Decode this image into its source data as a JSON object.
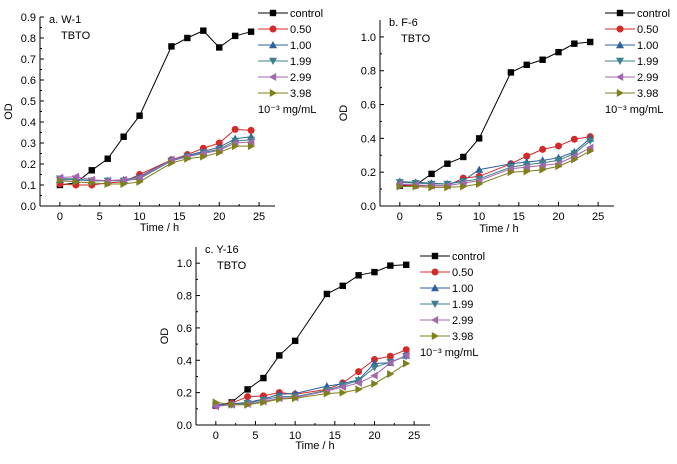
{
  "chart_data": [
    {
      "type": "line",
      "panel_label": "a. W-1",
      "annotation": "TBTO",
      "xlabel": "Time / h",
      "ylabel": "OD",
      "xlim": [
        -2.5,
        27
      ],
      "ylim": [
        0,
        0.9
      ],
      "xticks": [
        0,
        5,
        10,
        15,
        20,
        25
      ],
      "xtick_labels": [
        "0",
        "5",
        "10",
        "15",
        "20",
        "25"
      ],
      "yticks": [
        0,
        0.1,
        0.2,
        0.3,
        0.4,
        0.5,
        0.6,
        0.7,
        0.8,
        0.9
      ],
      "ytick_labels": [
        "0.0",
        "0.1",
        "0.2",
        "0.3",
        "0.4",
        "0.5",
        "0.6",
        "0.7",
        "0.8",
        "0.9"
      ],
      "legend_position": "top-right",
      "legend_unit": "10⁻³ mg/mL",
      "grid": false,
      "x": [
        0,
        2,
        4,
        6,
        8,
        10,
        14,
        16,
        18,
        20,
        22,
        24
      ],
      "series": [
        {
          "name": "control",
          "marker": "square",
          "color": "#000000",
          "values": [
            0.1,
            0.11,
            0.17,
            0.225,
            0.33,
            0.43,
            0.76,
            0.8,
            0.835,
            0.755,
            0.81,
            0.83
          ]
        },
        {
          "name": "0.50",
          "marker": "circle",
          "color": "#d42a2a",
          "values": [
            0.105,
            0.1,
            0.1,
            0.11,
            0.115,
            0.15,
            0.22,
            0.245,
            0.275,
            0.3,
            0.365,
            0.36
          ]
        },
        {
          "name": "1.00",
          "marker": "triangle-up",
          "color": "#2e5f9e",
          "values": [
            0.125,
            0.125,
            0.12,
            0.12,
            0.125,
            0.14,
            0.22,
            0.24,
            0.26,
            0.28,
            0.32,
            0.33
          ]
        },
        {
          "name": "1.99",
          "marker": "triangle-down",
          "color": "#3d7f8c",
          "values": [
            0.13,
            0.13,
            0.12,
            0.12,
            0.12,
            0.13,
            0.215,
            0.235,
            0.255,
            0.27,
            0.31,
            0.315
          ]
        },
        {
          "name": "2.99",
          "marker": "triangle-left",
          "color": "#a366b0",
          "values": [
            0.135,
            0.14,
            0.125,
            0.12,
            0.125,
            0.135,
            0.22,
            0.235,
            0.25,
            0.265,
            0.3,
            0.305
          ]
        },
        {
          "name": "3.98",
          "marker": "triangle-right",
          "color": "#7f7f1e",
          "values": [
            0.12,
            0.115,
            0.11,
            0.105,
            0.105,
            0.115,
            0.205,
            0.225,
            0.235,
            0.255,
            0.285,
            0.285
          ]
        }
      ]
    },
    {
      "type": "line",
      "panel_label": "b. F-6",
      "annotation": "TBTO",
      "xlabel": "Time / h",
      "ylabel": "OD",
      "xlim": [
        -2.5,
        27
      ],
      "ylim": [
        0,
        1.1
      ],
      "xticks": [
        0,
        5,
        10,
        15,
        20,
        25
      ],
      "xtick_labels": [
        "0",
        "5",
        "10",
        "15",
        "20",
        "25"
      ],
      "yticks": [
        0,
        0.2,
        0.4,
        0.6,
        0.8,
        1.0
      ],
      "ytick_labels": [
        "0.0",
        "0.2",
        "0.4",
        "0.6",
        "0.8",
        "1.0"
      ],
      "legend_position": "top-right",
      "legend_unit": "10⁻³ mg/mL",
      "grid": false,
      "x": [
        0,
        2,
        4,
        6,
        8,
        10,
        14,
        16,
        18,
        20,
        22,
        24
      ],
      "series": [
        {
          "name": "control",
          "marker": "square",
          "color": "#000000",
          "values": [
            0.12,
            0.125,
            0.19,
            0.25,
            0.29,
            0.4,
            0.79,
            0.835,
            0.865,
            0.91,
            0.96,
            0.97
          ]
        },
        {
          "name": "0.50",
          "marker": "circle",
          "color": "#d42a2a",
          "values": [
            0.125,
            0.12,
            0.12,
            0.12,
            0.165,
            0.175,
            0.25,
            0.295,
            0.335,
            0.355,
            0.395,
            0.41
          ]
        },
        {
          "name": "1.00",
          "marker": "triangle-up",
          "color": "#2e5f9e",
          "values": [
            0.145,
            0.14,
            0.135,
            0.13,
            0.15,
            0.215,
            0.25,
            0.26,
            0.27,
            0.285,
            0.32,
            0.4
          ]
        },
        {
          "name": "1.99",
          "marker": "triangle-down",
          "color": "#3d7f8c",
          "values": [
            0.14,
            0.135,
            0.13,
            0.13,
            0.145,
            0.16,
            0.23,
            0.245,
            0.255,
            0.27,
            0.31,
            0.385
          ]
        },
        {
          "name": "2.99",
          "marker": "triangle-left",
          "color": "#a366b0",
          "values": [
            0.13,
            0.125,
            0.12,
            0.12,
            0.135,
            0.15,
            0.22,
            0.23,
            0.24,
            0.25,
            0.295,
            0.345
          ]
        },
        {
          "name": "3.98",
          "marker": "triangle-right",
          "color": "#7f7f1e",
          "values": [
            0.115,
            0.115,
            0.11,
            0.11,
            0.115,
            0.13,
            0.2,
            0.205,
            0.215,
            0.235,
            0.275,
            0.325
          ]
        }
      ]
    },
    {
      "type": "line",
      "panel_label": "c. Y-16",
      "annotation": "TBTO",
      "xlabel": "Time / h",
      "ylabel": "OD",
      "xlim": [
        -2.5,
        27
      ],
      "ylim": [
        0,
        1.1
      ],
      "xticks": [
        0,
        5,
        10,
        15,
        20,
        25
      ],
      "xtick_labels": [
        "0",
        "5",
        "10",
        "15",
        "20",
        "25"
      ],
      "yticks": [
        0,
        0.2,
        0.4,
        0.6,
        0.8,
        1.0
      ],
      "ytick_labels": [
        "0.0",
        "0.2",
        "0.4",
        "0.6",
        "0.8",
        "1.0"
      ],
      "legend_position": "top-right",
      "legend_unit": "10⁻³ mg/mL",
      "grid": false,
      "x": [
        0,
        2,
        4,
        6,
        8,
        10,
        14,
        16,
        18,
        20,
        22,
        24
      ],
      "series": [
        {
          "name": "control",
          "marker": "square",
          "color": "#000000",
          "values": [
            0.12,
            0.14,
            0.22,
            0.29,
            0.43,
            0.52,
            0.81,
            0.86,
            0.925,
            0.945,
            0.985,
            0.99
          ]
        },
        {
          "name": "0.50",
          "marker": "circle",
          "color": "#d42a2a",
          "values": [
            0.12,
            0.135,
            0.175,
            0.18,
            0.2,
            0.19,
            0.22,
            0.26,
            0.33,
            0.405,
            0.425,
            0.465
          ]
        },
        {
          "name": "1.00",
          "marker": "triangle-up",
          "color": "#2e5f9e",
          "values": [
            0.125,
            0.13,
            0.14,
            0.16,
            0.19,
            0.195,
            0.24,
            0.255,
            0.28,
            0.38,
            0.385,
            0.43
          ]
        },
        {
          "name": "1.99",
          "marker": "triangle-down",
          "color": "#3d7f8c",
          "values": [
            0.12,
            0.125,
            0.135,
            0.155,
            0.175,
            0.175,
            0.215,
            0.245,
            0.275,
            0.355,
            0.39,
            0.425
          ]
        },
        {
          "name": "2.99",
          "marker": "triangle-left",
          "color": "#a366b0",
          "values": [
            0.115,
            0.125,
            0.13,
            0.145,
            0.165,
            0.17,
            0.21,
            0.235,
            0.26,
            0.305,
            0.385,
            0.43
          ]
        },
        {
          "name": "3.98",
          "marker": "triangle-right",
          "color": "#7f7f1e",
          "values": [
            0.14,
            0.125,
            0.125,
            0.14,
            0.16,
            0.165,
            0.195,
            0.2,
            0.22,
            0.255,
            0.315,
            0.38
          ]
        }
      ]
    }
  ]
}
